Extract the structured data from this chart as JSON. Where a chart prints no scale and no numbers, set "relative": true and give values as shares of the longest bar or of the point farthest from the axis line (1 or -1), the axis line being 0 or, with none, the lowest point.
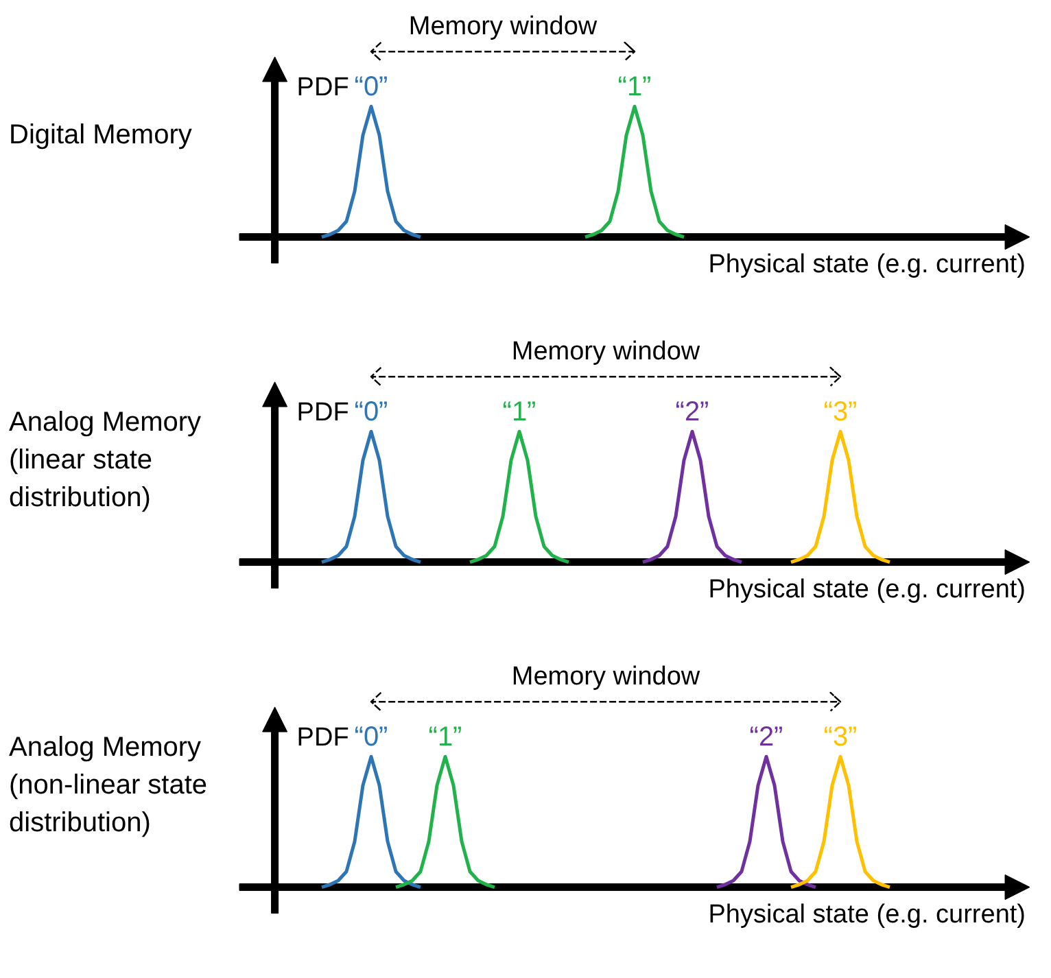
{
  "chart_data": [
    {
      "type": "line",
      "relative": true,
      "title": "Digital Memory",
      "ylabel": "PDF",
      "xlabel": "Physical state (e.g. current)",
      "annotations": [
        "Memory window"
      ],
      "categories": [
        null,
        null,
        null,
        null,
        null,
        null,
        null,
        null,
        null,
        null,
        null,
        null,
        null,
        null,
        null,
        null,
        null,
        null,
        null,
        null,
        null,
        null,
        null,
        null,
        null,
        null,
        null,
        null,
        null,
        null,
        null,
        null,
        null,
        null,
        null,
        null,
        null,
        null,
        null,
        null,
        null,
        null,
        null,
        null,
        null,
        null,
        null,
        null,
        null,
        null,
        null,
        null,
        null,
        null,
        null,
        null,
        null,
        null,
        null,
        null,
        null,
        null,
        null,
        null,
        null,
        null,
        null,
        null,
        null,
        null,
        null,
        null,
        null,
        null,
        null,
        null,
        null,
        null,
        null,
        null,
        null,
        null,
        null,
        null,
        null,
        null,
        null,
        null,
        null,
        null,
        null,
        null,
        null,
        null,
        null
      ],
      "series": [
        {
          "name": "“0”",
          "color": "#2e75b6",
          "values": [
            null,
            null,
            null,
            null,
            null,
            null,
            null,
            null,
            null,
            0,
            0.02,
            0.05,
            0.12,
            0.35,
            0.78,
            1,
            0.78,
            0.35,
            0.12,
            0.05,
            0.02,
            0,
            null,
            null,
            null,
            null,
            null,
            null,
            null,
            null,
            null,
            null,
            null,
            null,
            null,
            null,
            null,
            null,
            null,
            null,
            null,
            null,
            null,
            null,
            null,
            null,
            null,
            null,
            null,
            null,
            null,
            null,
            null,
            null,
            null,
            null,
            null,
            null,
            null,
            null,
            null,
            null,
            null,
            null,
            null,
            null,
            null,
            null,
            null,
            null,
            null,
            null,
            null,
            null,
            null,
            null,
            null,
            null,
            null,
            null,
            null,
            null,
            null,
            null,
            null,
            null,
            null,
            null,
            null,
            null,
            null,
            null,
            null,
            null,
            null
          ]
        },
        {
          "name": "“1”",
          "color": "#22b24c",
          "values": [
            null,
            null,
            null,
            null,
            null,
            null,
            null,
            null,
            null,
            null,
            null,
            null,
            null,
            null,
            null,
            null,
            null,
            null,
            null,
            null,
            null,
            null,
            null,
            null,
            null,
            null,
            null,
            null,
            null,
            null,
            null,
            null,
            null,
            null,
            null,
            null,
            null,
            null,
            null,
            null,
            null,
            0,
            0.02,
            0.05,
            0.12,
            0.35,
            0.78,
            1,
            0.78,
            0.35,
            0.12,
            0.05,
            0.02,
            0,
            null,
            null,
            null,
            null,
            null,
            null,
            null,
            null,
            null,
            null,
            null,
            null,
            null,
            null,
            null,
            null,
            null,
            null,
            null,
            null,
            null,
            null,
            null,
            null,
            null,
            null,
            null,
            null,
            null,
            null,
            null,
            null,
            null,
            null,
            null,
            null,
            null,
            null,
            null,
            null,
            null
          ]
        }
      ]
    },
    {
      "type": "line",
      "relative": true,
      "title": "Analog Memory (linear state distribution)",
      "ylabel": "PDF",
      "xlabel": "Physical state (e.g. current)",
      "annotations": [
        "Memory window"
      ],
      "categories": [
        null,
        null,
        null,
        null,
        null,
        null,
        null,
        null,
        null,
        null,
        null,
        null,
        null,
        null,
        null,
        null,
        null,
        null,
        null,
        null,
        null,
        null,
        null,
        null,
        null,
        null,
        null,
        null,
        null,
        null,
        null,
        null,
        null,
        null,
        null,
        null,
        null,
        null,
        null,
        null,
        null,
        null,
        null,
        null,
        null,
        null,
        null,
        null,
        null,
        null,
        null,
        null,
        null,
        null,
        null,
        null,
        null,
        null,
        null,
        null,
        null,
        null,
        null,
        null,
        null,
        null,
        null,
        null,
        null,
        null,
        null,
        null,
        null,
        null,
        null,
        null,
        null,
        null,
        null,
        null,
        null,
        null,
        null,
        null,
        null,
        null,
        null,
        null,
        null,
        null,
        null,
        null,
        null,
        null,
        null
      ],
      "series": [
        {
          "name": "“0”",
          "color": "#2e75b6",
          "values": [
            null,
            null,
            null,
            null,
            null,
            null,
            null,
            null,
            null,
            0,
            0.02,
            0.05,
            0.12,
            0.35,
            0.78,
            1,
            0.78,
            0.35,
            0.12,
            0.05,
            0.02,
            0,
            null,
            null,
            null,
            null,
            null,
            null,
            null,
            null,
            null,
            null,
            null,
            null,
            null,
            null,
            null,
            null,
            null,
            null,
            null,
            null,
            null,
            null,
            null,
            null,
            null,
            null,
            null,
            null,
            null,
            null,
            null,
            null,
            null,
            null,
            null,
            null,
            null,
            null,
            null,
            null,
            null,
            null,
            null,
            null,
            null,
            null,
            null,
            null,
            null,
            null,
            null,
            null,
            null,
            null,
            null,
            null,
            null,
            null,
            null,
            null,
            null,
            null,
            null,
            null,
            null,
            null,
            null,
            null,
            null,
            null,
            null,
            null,
            null
          ]
        },
        {
          "name": "“1”",
          "color": "#22b24c",
          "values": [
            null,
            null,
            null,
            null,
            null,
            null,
            null,
            null,
            null,
            null,
            null,
            null,
            null,
            null,
            null,
            null,
            null,
            null,
            null,
            null,
            null,
            null,
            null,
            null,
            null,
            null,
            null,
            0,
            0.02,
            0.05,
            0.12,
            0.35,
            0.78,
            1,
            0.78,
            0.35,
            0.12,
            0.05,
            0.02,
            0,
            null,
            null,
            null,
            null,
            null,
            null,
            null,
            null,
            null,
            null,
            null,
            null,
            null,
            null,
            null,
            null,
            null,
            null,
            null,
            null,
            null,
            null,
            null,
            null,
            null,
            null,
            null,
            null,
            null,
            null,
            null,
            null,
            null,
            null,
            null,
            null,
            null,
            null,
            null,
            null,
            null,
            null,
            null,
            null,
            null,
            null,
            null,
            null,
            null,
            null,
            null,
            null,
            null,
            null,
            null
          ]
        },
        {
          "name": "“2”",
          "color": "#7030a0",
          "values": [
            null,
            null,
            null,
            null,
            null,
            null,
            null,
            null,
            null,
            null,
            null,
            null,
            null,
            null,
            null,
            null,
            null,
            null,
            null,
            null,
            null,
            null,
            null,
            null,
            null,
            null,
            null,
            null,
            null,
            null,
            null,
            null,
            null,
            null,
            null,
            null,
            null,
            null,
            null,
            null,
            null,
            null,
            null,
            null,
            null,
            null,
            null,
            null,
            0,
            0.02,
            0.05,
            0.12,
            0.35,
            0.78,
            1,
            0.78,
            0.35,
            0.12,
            0.05,
            0.02,
            0,
            null,
            null,
            null,
            null,
            null,
            null,
            null,
            null,
            null,
            null,
            null,
            null,
            null,
            null,
            null,
            null,
            null,
            null,
            null,
            null,
            null,
            null,
            null,
            null,
            null,
            null,
            null,
            null,
            null,
            null,
            null,
            null,
            null,
            null
          ]
        },
        {
          "name": "“3”",
          "color": "#ffc000",
          "values": [
            null,
            null,
            null,
            null,
            null,
            null,
            null,
            null,
            null,
            null,
            null,
            null,
            null,
            null,
            null,
            null,
            null,
            null,
            null,
            null,
            null,
            null,
            null,
            null,
            null,
            null,
            null,
            null,
            null,
            null,
            null,
            null,
            null,
            null,
            null,
            null,
            null,
            null,
            null,
            null,
            null,
            null,
            null,
            null,
            null,
            null,
            null,
            null,
            null,
            null,
            null,
            null,
            null,
            null,
            null,
            null,
            null,
            null,
            null,
            null,
            null,
            null,
            null,
            null,
            null,
            null,
            0,
            0.02,
            0.05,
            0.12,
            0.35,
            0.78,
            1,
            0.78,
            0.35,
            0.12,
            0.05,
            0.02,
            0,
            null,
            null,
            null,
            null,
            null,
            null,
            null,
            null,
            null,
            null,
            null,
            null,
            null,
            null,
            null,
            null
          ]
        }
      ]
    },
    {
      "type": "line",
      "relative": true,
      "title": "Analog Memory (non-linear state distribution)",
      "ylabel": "PDF",
      "xlabel": "Physical state (e.g. current)",
      "annotations": [
        "Memory window"
      ],
      "categories": [
        null,
        null,
        null,
        null,
        null,
        null,
        null,
        null,
        null,
        null,
        null,
        null,
        null,
        null,
        null,
        null,
        null,
        null,
        null,
        null,
        null,
        null,
        null,
        null,
        null,
        null,
        null,
        null,
        null,
        null,
        null,
        null,
        null,
        null,
        null,
        null,
        null,
        null,
        null,
        null,
        null,
        null,
        null,
        null,
        null,
        null,
        null,
        null,
        null,
        null,
        null,
        null,
        null,
        null,
        null,
        null,
        null,
        null,
        null,
        null,
        null,
        null,
        null,
        null,
        null,
        null,
        null,
        null,
        null,
        null,
        null,
        null,
        null,
        null,
        null,
        null,
        null,
        null,
        null,
        null,
        null,
        null,
        null,
        null,
        null,
        null,
        null,
        null,
        null,
        null,
        null,
        null,
        null,
        null,
        null
      ],
      "series": [
        {
          "name": "“0”",
          "color": "#2e75b6",
          "values": [
            null,
            null,
            null,
            null,
            null,
            null,
            null,
            null,
            null,
            0,
            0.02,
            0.05,
            0.12,
            0.35,
            0.78,
            1,
            0.78,
            0.35,
            0.12,
            0.05,
            0.02,
            0,
            null,
            null,
            null,
            null,
            null,
            null,
            null,
            null,
            null,
            null,
            null,
            null,
            null,
            null,
            null,
            null,
            null,
            null,
            null,
            null,
            null,
            null,
            null,
            null,
            null,
            null,
            null,
            null,
            null,
            null,
            null,
            null,
            null,
            null,
            null,
            null,
            null,
            null,
            null,
            null,
            null,
            null,
            null,
            null,
            null,
            null,
            null,
            null,
            null,
            null,
            null,
            null,
            null,
            null,
            null,
            null,
            null,
            null,
            null,
            null,
            null,
            null,
            null,
            null,
            null,
            null,
            null,
            null,
            null,
            null,
            null,
            null,
            null
          ]
        },
        {
          "name": "“1”",
          "color": "#22b24c",
          "values": [
            null,
            null,
            null,
            null,
            null,
            null,
            null,
            null,
            null,
            null,
            null,
            null,
            null,
            null,
            null,
            null,
            null,
            null,
            0,
            0.02,
            0.05,
            0.12,
            0.35,
            0.78,
            1,
            0.78,
            0.35,
            0.12,
            0.05,
            0.02,
            0,
            null,
            null,
            null,
            null,
            null,
            null,
            null,
            null,
            null,
            null,
            null,
            null,
            null,
            null,
            null,
            null,
            null,
            null,
            null,
            null,
            null,
            null,
            null,
            null,
            null,
            null,
            null,
            null,
            null,
            null,
            null,
            null,
            null,
            null,
            null,
            null,
            null,
            null,
            null,
            null,
            null,
            null,
            null,
            null,
            null,
            null,
            null,
            null,
            null,
            null,
            null,
            null,
            null,
            null,
            null,
            null,
            null,
            null,
            null,
            null,
            null,
            null,
            null,
            null
          ]
        },
        {
          "name": "“2”",
          "color": "#7030a0",
          "values": [
            null,
            null,
            null,
            null,
            null,
            null,
            null,
            null,
            null,
            null,
            null,
            null,
            null,
            null,
            null,
            null,
            null,
            null,
            null,
            null,
            null,
            null,
            null,
            null,
            null,
            null,
            null,
            null,
            null,
            null,
            null,
            null,
            null,
            null,
            null,
            null,
            null,
            null,
            null,
            null,
            null,
            null,
            null,
            null,
            null,
            null,
            null,
            null,
            null,
            null,
            null,
            null,
            null,
            null,
            null,
            null,
            null,
            0,
            0.02,
            0.05,
            0.12,
            0.35,
            0.78,
            1,
            0.78,
            0.35,
            0.12,
            0.05,
            0.02,
            0,
            null,
            null,
            null,
            null,
            null,
            null,
            null,
            null,
            null,
            null,
            null,
            null,
            null,
            null,
            null,
            null,
            null,
            null,
            null,
            null,
            null,
            null,
            null,
            null,
            null
          ]
        },
        {
          "name": "“3”",
          "color": "#ffc000",
          "values": [
            null,
            null,
            null,
            null,
            null,
            null,
            null,
            null,
            null,
            null,
            null,
            null,
            null,
            null,
            null,
            null,
            null,
            null,
            null,
            null,
            null,
            null,
            null,
            null,
            null,
            null,
            null,
            null,
            null,
            null,
            null,
            null,
            null,
            null,
            null,
            null,
            null,
            null,
            null,
            null,
            null,
            null,
            null,
            null,
            null,
            null,
            null,
            null,
            null,
            null,
            null,
            null,
            null,
            null,
            null,
            null,
            null,
            null,
            null,
            null,
            null,
            null,
            null,
            null,
            null,
            null,
            0,
            0.02,
            0.05,
            0.12,
            0.35,
            0.78,
            1,
            0.78,
            0.35,
            0.12,
            0.05,
            0.02,
            0,
            null,
            null,
            null,
            null,
            null,
            null,
            null,
            null,
            null,
            null,
            null,
            null,
            null,
            null,
            null,
            null
          ]
        }
      ]
    }
  ]
}
